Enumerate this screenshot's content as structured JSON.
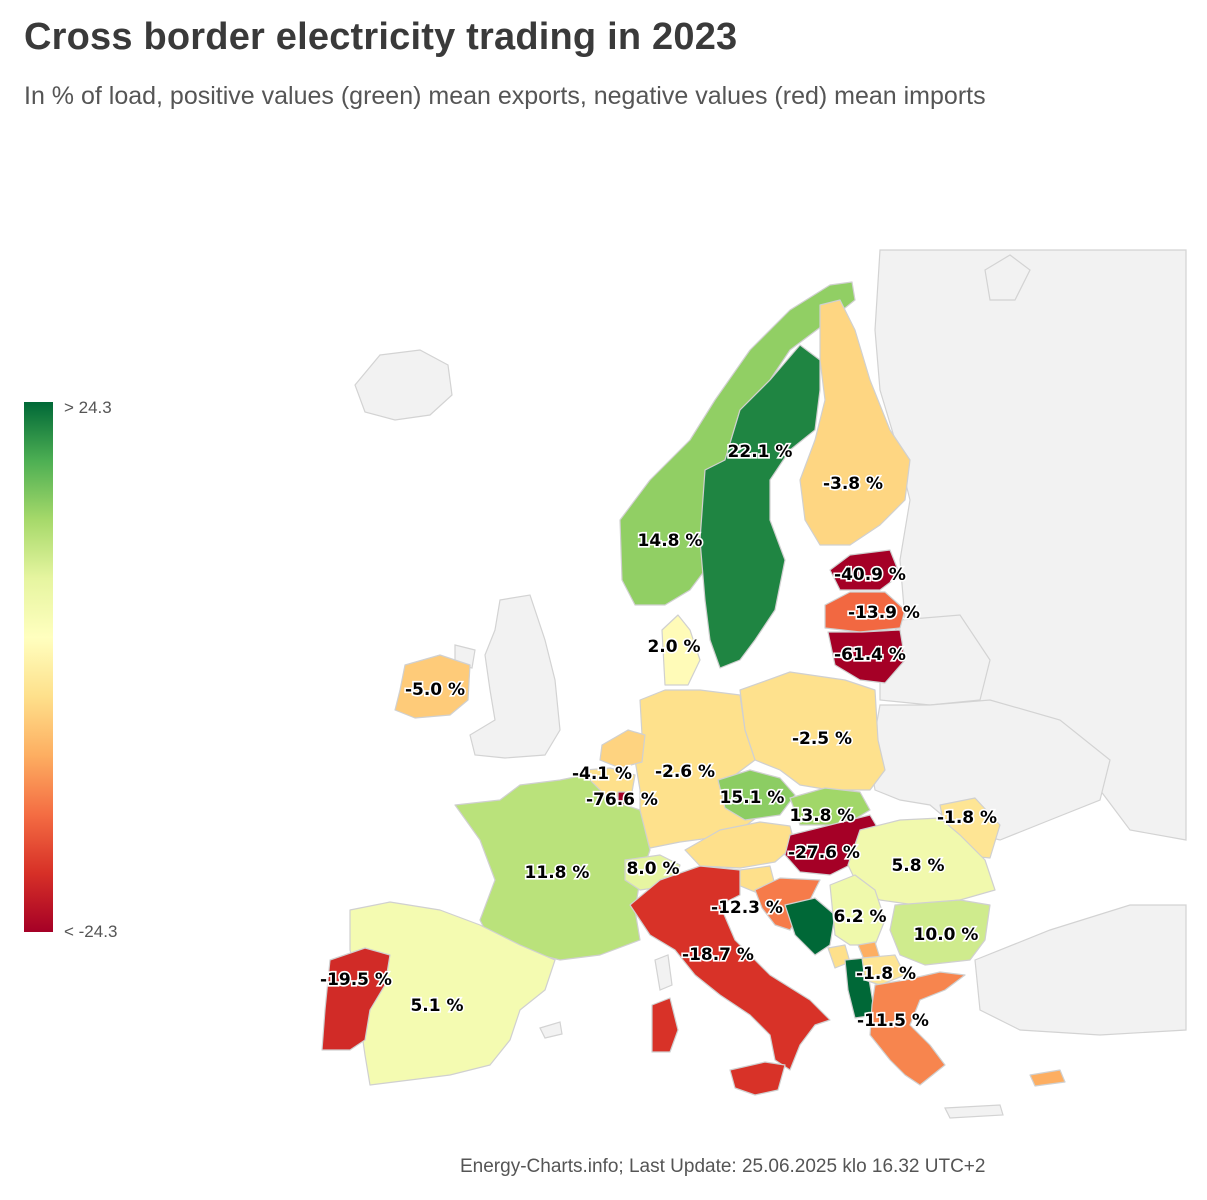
{
  "title": "Cross border electricity trading in 2023",
  "subtitle": "In % of load, positive values (green) mean exports, negative values (red) mean imports",
  "legend": {
    "max_label": "> 24.3",
    "min_label": "< -24.3",
    "max": 24.3,
    "min": -24.3,
    "colors": [
      "#006837",
      "#4daf53",
      "#a6d96a",
      "#e6f5a0",
      "#ffffbf",
      "#fee08b",
      "#fdae61",
      "#f46d43",
      "#d73027",
      "#a50026"
    ]
  },
  "footer": "Energy-Charts.info; Last Update: 25.06.2025 klo 16.32 UTC+2",
  "countries": [
    {
      "id": "SE",
      "value": 22.1,
      "label": "22.1 %"
    },
    {
      "id": "FI",
      "value": -3.8,
      "label": "-3.8 %"
    },
    {
      "id": "NO",
      "value": 14.8,
      "label": "14.8 %"
    },
    {
      "id": "EE",
      "value": -40.9,
      "label": "-40.9 %"
    },
    {
      "id": "LV",
      "value": -13.9,
      "label": "-13.9 %"
    },
    {
      "id": "LT",
      "value": -61.4,
      "label": "-61.4 %"
    },
    {
      "id": "DK",
      "value": 2.0,
      "label": "2.0 %"
    },
    {
      "id": "IE",
      "value": -5.0,
      "label": "-5.0 %"
    },
    {
      "id": "PL",
      "value": -2.5,
      "label": "-2.5 %"
    },
    {
      "id": "NL",
      "value": -4.1,
      "label": "-4.1 %"
    },
    {
      "id": "DE",
      "value": -2.6,
      "label": "-2.6 %"
    },
    {
      "id": "LU",
      "value": -76.6,
      "label": "-76.6 %"
    },
    {
      "id": "CZ",
      "value": 15.1,
      "label": "15.1 %"
    },
    {
      "id": "SK",
      "value": 13.8,
      "label": "13.8 %"
    },
    {
      "id": "MD",
      "value": -1.8,
      "label": "-1.8 %"
    },
    {
      "id": "HU",
      "value": -27.6,
      "label": "-27.6 %"
    },
    {
      "id": "RO",
      "value": 5.8,
      "label": "5.8 %"
    },
    {
      "id": "FR",
      "value": 11.8,
      "label": "11.8 %"
    },
    {
      "id": "CH",
      "value": 8.0,
      "label": "8.0 %"
    },
    {
      "id": "HR",
      "value": -12.3,
      "label": "-12.3 %"
    },
    {
      "id": "RS",
      "value": 6.2,
      "label": "6.2 %"
    },
    {
      "id": "BG",
      "value": 10.0,
      "label": "10.0 %"
    },
    {
      "id": "IT",
      "value": -18.7,
      "label": "-18.7 %"
    },
    {
      "id": "MK",
      "value": -1.8,
      "label": "-1.8 %"
    },
    {
      "id": "PT",
      "value": -19.5,
      "label": "-19.5 %"
    },
    {
      "id": "ES",
      "value": 5.1,
      "label": "5.1 %"
    },
    {
      "id": "GR",
      "value": -11.5,
      "label": "-11.5 %"
    }
  ],
  "unlabeled_regions": [
    {
      "id": "BE",
      "color": "#fee08b"
    },
    {
      "id": "AT",
      "color": "#fee08b"
    },
    {
      "id": "SI",
      "color": "#fee08b"
    },
    {
      "id": "BA",
      "color": "#006837"
    },
    {
      "id": "ME",
      "color": "#fee08b"
    },
    {
      "id": "AL",
      "color": "#006837"
    },
    {
      "id": "XK",
      "color": "#fdae61"
    },
    {
      "id": "CY",
      "color": "#fdae61"
    }
  ]
}
